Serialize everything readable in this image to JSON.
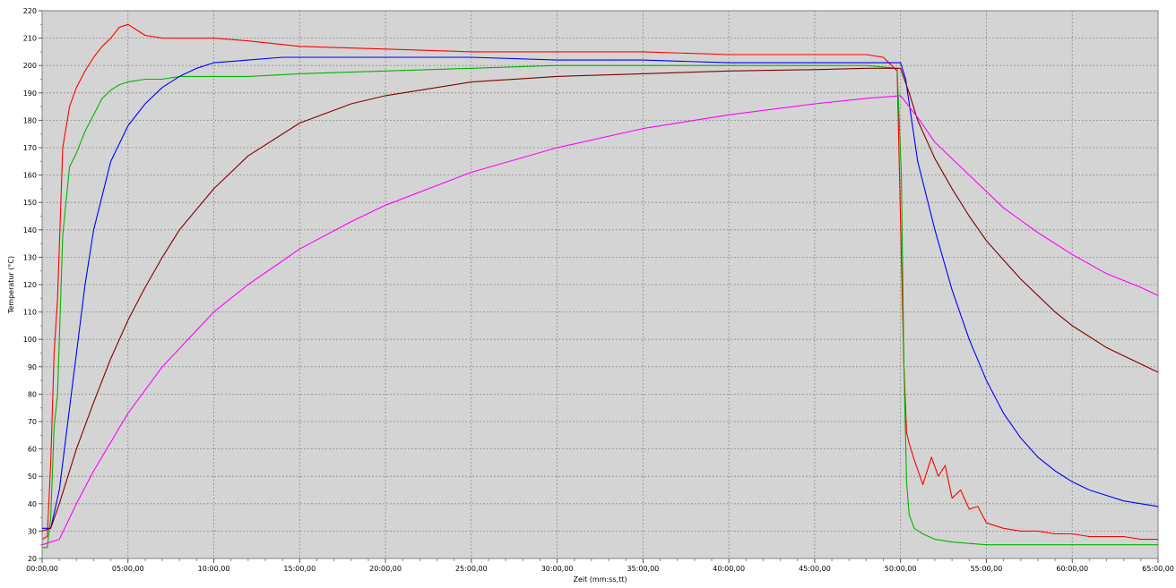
{
  "chart_data": {
    "type": "line",
    "title": "",
    "xlabel": "Zeit (mm:ss,tt)",
    "ylabel": "Temperatur (°C)",
    "xlim": [
      0,
      65
    ],
    "ylim": [
      20,
      220
    ],
    "x_unit": "minutes",
    "y_ticks": [
      20,
      30,
      40,
      50,
      60,
      70,
      80,
      90,
      100,
      110,
      120,
      130,
      140,
      150,
      160,
      170,
      180,
      190,
      200,
      210,
      220
    ],
    "x_ticks": [
      0,
      5,
      10,
      15,
      20,
      25,
      30,
      35,
      40,
      45,
      50,
      55,
      60,
      65
    ],
    "x_tick_labels": [
      "00:00,00",
      "05:00,00",
      "10:00,00",
      "15:00,00",
      "20:00,00",
      "25:00,00",
      "30:00,00",
      "35:00,00",
      "40:00,00",
      "45:00,00",
      "50:00,00",
      "55:00,00",
      "60:00,00",
      "65:00,00"
    ],
    "grid": true,
    "plot_background": "#d4d4d4",
    "series": [
      {
        "color": "#ff0000",
        "x": [
          0,
          0.3,
          0.5,
          0.7,
          0.9,
          1.2,
          1.6,
          2,
          2.5,
          3,
          3.5,
          4,
          4.5,
          5,
          5.5,
          6,
          7,
          8,
          9,
          10,
          12,
          15,
          20,
          25,
          30,
          35,
          40,
          45,
          48,
          49,
          49.8,
          50.05,
          50.2,
          50.35,
          50.5,
          50.8,
          51.3,
          51.8,
          52.2,
          52.6,
          53,
          53.5,
          54,
          54.5,
          55,
          55.5,
          56,
          57,
          58,
          59,
          60,
          61,
          62,
          63,
          64,
          65
        ],
        "y": [
          27,
          28,
          55,
          95,
          115,
          170,
          185,
          192,
          198,
          203,
          207,
          210,
          214,
          215,
          213,
          211,
          210,
          210,
          210,
          210,
          209,
          207,
          206,
          205,
          205,
          205,
          204,
          204,
          204,
          203,
          198,
          130,
          90,
          66,
          62,
          56,
          47,
          57,
          50,
          54,
          42,
          45,
          38,
          39,
          33,
          32,
          31,
          30,
          30,
          29,
          29,
          28,
          28,
          28,
          27,
          27
        ]
      },
      {
        "color": "#00b400",
        "x": [
          0,
          0.3,
          0.5,
          0.7,
          0.9,
          1.2,
          1.6,
          2,
          2.5,
          3,
          3.5,
          4,
          4.5,
          5,
          6,
          7,
          8,
          10,
          12,
          15,
          20,
          25,
          30,
          35,
          40,
          45,
          48,
          49.8,
          50.05,
          50.2,
          50.35,
          50.5,
          50.8,
          51.3,
          52,
          53,
          54,
          55,
          57,
          60,
          63,
          65
        ],
        "y": [
          24,
          24,
          35,
          68,
          80,
          138,
          163,
          168,
          176,
          182,
          188,
          191,
          193,
          194,
          195,
          195,
          196,
          196,
          196,
          197,
          198,
          199,
          200,
          200,
          200,
          200,
          200,
          199,
          160,
          90,
          48,
          36,
          31,
          29,
          27,
          26,
          25.5,
          25,
          25,
          25,
          25,
          25
        ]
      },
      {
        "color": "#0000ff",
        "x": [
          0,
          0.5,
          1,
          1.5,
          2,
          2.5,
          3,
          4,
          5,
          6,
          7,
          8,
          9,
          10,
          12,
          14,
          16,
          20,
          25,
          30,
          35,
          40,
          45,
          48,
          50,
          50.3,
          51,
          52,
          53,
          54,
          55,
          56,
          57,
          58,
          59,
          60,
          61,
          62,
          63,
          64,
          65
        ],
        "y": [
          31,
          31,
          45,
          70,
          95,
          120,
          140,
          165,
          178,
          186,
          192,
          196,
          199,
          201,
          202,
          203,
          203,
          203,
          203,
          202,
          202,
          201,
          201,
          201,
          201,
          195,
          165,
          140,
          118,
          100,
          85,
          73,
          64,
          57,
          52,
          48,
          45,
          43,
          41,
          40,
          39
        ]
      },
      {
        "color": "#800000",
        "x": [
          0,
          0.5,
          1,
          2,
          3,
          4,
          5,
          6,
          7,
          8,
          10,
          12,
          15,
          18,
          20,
          25,
          30,
          35,
          40,
          45,
          48,
          50,
          50.5,
          51,
          52,
          53,
          54,
          55,
          56,
          57,
          58,
          59,
          60,
          61,
          62,
          63,
          64,
          65
        ],
        "y": [
          30,
          31,
          40,
          60,
          77,
          93,
          107,
          119,
          130,
          140,
          155,
          167,
          179,
          186,
          189,
          194,
          196,
          197,
          198,
          198.5,
          199,
          199,
          190,
          180,
          166,
          155,
          145,
          136,
          129,
          122,
          116,
          110,
          105,
          101,
          97,
          94,
          91,
          88
        ]
      },
      {
        "color": "#ff00ff",
        "x": [
          0,
          1,
          2,
          3,
          5,
          7,
          10,
          12,
          15,
          18,
          20,
          25,
          30,
          35,
          40,
          45,
          48,
          50,
          51,
          52,
          54,
          56,
          58,
          60,
          62,
          64,
          65
        ],
        "y": [
          25,
          27,
          40,
          52,
          73,
          90,
          110,
          120,
          133,
          143,
          149,
          161,
          170,
          177,
          182,
          186,
          188,
          189,
          181,
          172,
          160,
          148,
          139,
          131,
          124,
          119,
          116
        ]
      }
    ]
  }
}
